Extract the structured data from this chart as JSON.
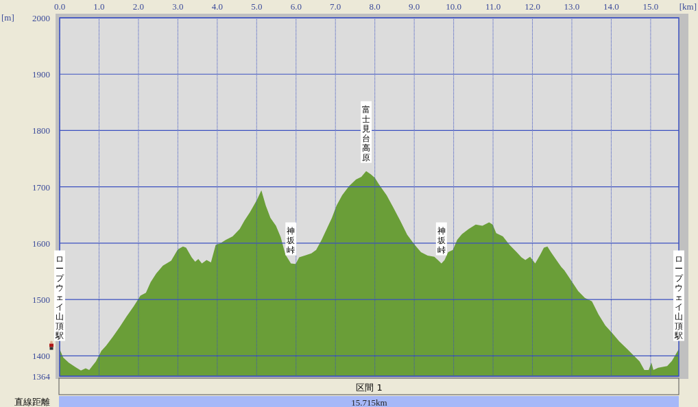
{
  "chart_data": {
    "type": "area",
    "xlabel": "[km]",
    "ylabel": "[m]",
    "color": "#6a9e38",
    "grid": true,
    "xlim": [
      0,
      15.715
    ],
    "ylim": [
      1364,
      2000
    ],
    "xticks": [
      {
        "value": 0,
        "label": "0.0"
      },
      {
        "value": 1,
        "label": "1.0"
      },
      {
        "value": 2,
        "label": "2.0"
      },
      {
        "value": 3,
        "label": "3.0"
      },
      {
        "value": 4,
        "label": "4.0"
      },
      {
        "value": 5,
        "label": "5.0"
      },
      {
        "value": 6,
        "label": "6.0"
      },
      {
        "value": 7,
        "label": "7.0"
      },
      {
        "value": 8,
        "label": "8.0"
      },
      {
        "value": 9,
        "label": "9.0"
      },
      {
        "value": 10,
        "label": "10.0"
      },
      {
        "value": 11,
        "label": "11.0"
      },
      {
        "value": 12,
        "label": "12.0"
      },
      {
        "value": 13,
        "label": "13.0"
      },
      {
        "value": 14,
        "label": "14.0"
      },
      {
        "value": 15,
        "label": "15.0"
      }
    ],
    "yticks": [
      1364,
      1400,
      1500,
      1600,
      1700,
      1800,
      1900,
      2000
    ],
    "x": [
      0,
      0.09,
      0.23,
      0.4,
      0.54,
      0.66,
      0.75,
      0.92,
      1.06,
      1.18,
      1.35,
      1.53,
      1.7,
      1.88,
      1.96,
      2.05,
      2.19,
      2.31,
      2.45,
      2.62,
      2.83,
      3.0,
      3.13,
      3.21,
      3.35,
      3.44,
      3.52,
      3.61,
      3.73,
      3.84,
      3.96,
      4.08,
      4.22,
      4.39,
      4.57,
      4.69,
      4.83,
      5.0,
      5.12,
      5.23,
      5.35,
      5.49,
      5.61,
      5.73,
      5.87,
      5.99,
      6.08,
      6.22,
      6.39,
      6.51,
      6.65,
      6.79,
      6.91,
      7.03,
      7.17,
      7.34,
      7.52,
      7.66,
      7.78,
      7.9,
      8.0,
      8.09,
      8.18,
      8.3,
      8.47,
      8.65,
      8.82,
      9.0,
      9.17,
      9.34,
      9.51,
      9.6,
      9.69,
      9.77,
      9.86,
      9.98,
      10.09,
      10.21,
      10.38,
      10.56,
      10.73,
      10.9,
      10.99,
      11.08,
      11.25,
      11.42,
      11.6,
      11.72,
      11.82,
      11.94,
      12.07,
      12.2,
      12.29,
      12.38,
      12.47,
      12.59,
      12.73,
      12.81,
      12.99,
      13.16,
      13.33,
      13.51,
      13.68,
      13.85,
      14.03,
      14.2,
      14.38,
      14.55,
      14.72,
      14.84,
      14.95,
      15.02,
      15.07,
      15.19,
      15.42,
      15.54,
      15.715
    ],
    "values": [
      1412,
      1397,
      1388,
      1380,
      1374,
      1378,
      1375,
      1390,
      1409,
      1418,
      1434,
      1452,
      1470,
      1488,
      1497,
      1507,
      1512,
      1531,
      1546,
      1560,
      1569,
      1589,
      1594,
      1592,
      1575,
      1567,
      1572,
      1564,
      1570,
      1566,
      1597,
      1600,
      1606,
      1612,
      1625,
      1640,
      1655,
      1676,
      1694,
      1667,
      1645,
      1631,
      1611,
      1580,
      1564,
      1563,
      1575,
      1578,
      1582,
      1588,
      1606,
      1627,
      1645,
      1667,
      1685,
      1701,
      1713,
      1718,
      1728,
      1722,
      1716,
      1706,
      1697,
      1685,
      1663,
      1639,
      1615,
      1598,
      1584,
      1578,
      1576,
      1570,
      1564,
      1570,
      1584,
      1588,
      1606,
      1616,
      1625,
      1633,
      1631,
      1637,
      1633,
      1618,
      1612,
      1597,
      1584,
      1575,
      1570,
      1576,
      1564,
      1580,
      1592,
      1594,
      1584,
      1572,
      1558,
      1552,
      1533,
      1515,
      1503,
      1497,
      1473,
      1454,
      1440,
      1426,
      1414,
      1402,
      1390,
      1375,
      1375,
      1388,
      1375,
      1379,
      1382,
      1391,
      1412
    ],
    "annotations": [
      "ロープウェイ山頂駅",
      {
        "text": "神坂峠",
        "x": 5.87,
        "y": 1564
      },
      {
        "text": "富士見台高原",
        "x": 7.78,
        "y": 1728
      },
      {
        "text": "神坂峠",
        "x": 9.69,
        "y": 1564
      },
      "ロープウェイ山頂駅",
      "区間 1",
      "直線距離",
      "15.715km"
    ]
  }
}
